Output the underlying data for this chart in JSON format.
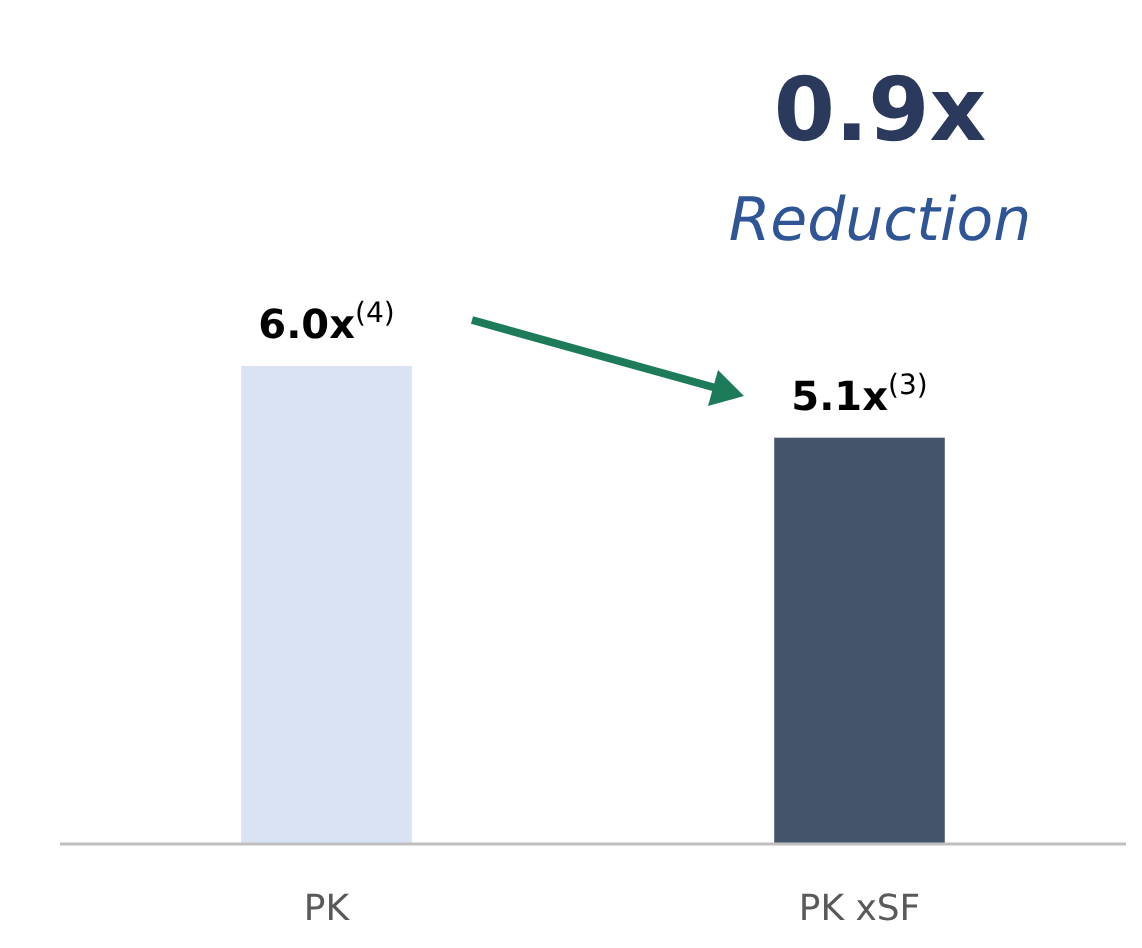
{
  "chart_data": {
    "type": "bar",
    "categories": [
      "PK",
      "PK xSF"
    ],
    "values": [
      6.0,
      5.1
    ],
    "colors": [
      "#dae3f3",
      "#44546a"
    ],
    "value_labels": [
      "6.0x$^{(4)}$",
      "5.1x$^{(3)}$"
    ],
    "annotations": [
      "0.9x",
      "Reduction"
    ]
  }
}
